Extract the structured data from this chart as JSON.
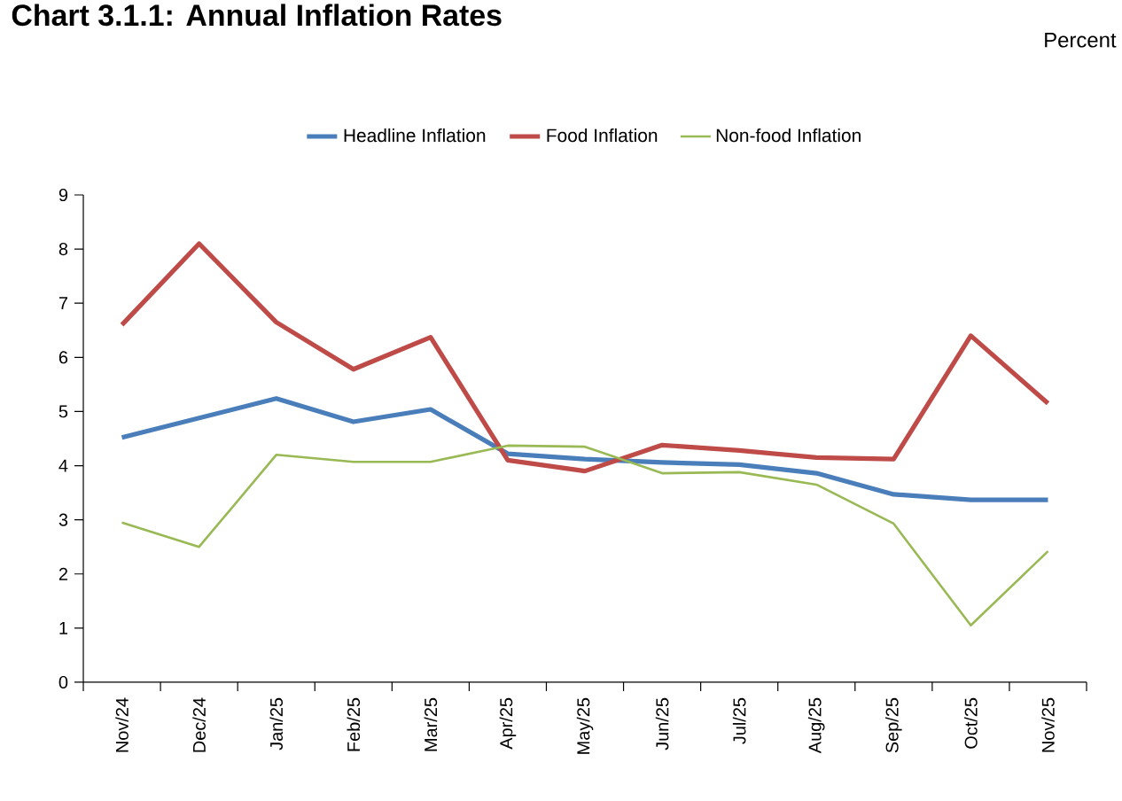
{
  "chart_data": {
    "type": "line",
    "title": "Chart 3.1.1: Annual Inflation Rates",
    "annotations": [
      "Percent"
    ],
    "categories": [
      "Nov/24",
      "Dec/24",
      "Jan/25",
      "Feb/25",
      "Mar/25",
      "Apr/25",
      "May/25",
      "Jun/25",
      "Jul/25",
      "Aug/25",
      "Sep/25",
      "Oct/25",
      "Nov/25"
    ],
    "series": [
      {
        "name": "Headline Inflation",
        "color": "#4a7ebb",
        "values": [
          4.52,
          4.88,
          5.24,
          4.81,
          5.04,
          4.22,
          4.12,
          4.06,
          4.02,
          3.86,
          3.47,
          3.37,
          3.37
        ]
      },
      {
        "name": "Food Inflation",
        "color": "#be4b48",
        "values": [
          6.6,
          8.1,
          6.65,
          5.78,
          6.37,
          4.1,
          3.9,
          4.38,
          4.28,
          4.15,
          4.12,
          6.4,
          5.15
        ]
      },
      {
        "name": "Non-food Inflation",
        "color": "#98b954",
        "values": [
          2.95,
          2.5,
          4.2,
          4.07,
          4.07,
          4.37,
          4.35,
          3.86,
          3.88,
          3.65,
          2.93,
          1.05,
          2.42
        ]
      }
    ],
    "ylim": [
      0,
      9
    ],
    "yticks": [
      0,
      1,
      2,
      3,
      4,
      5,
      6,
      7,
      8,
      9
    ],
    "grid": false,
    "legend": "top",
    "marker": "none",
    "line_style": "solid"
  }
}
